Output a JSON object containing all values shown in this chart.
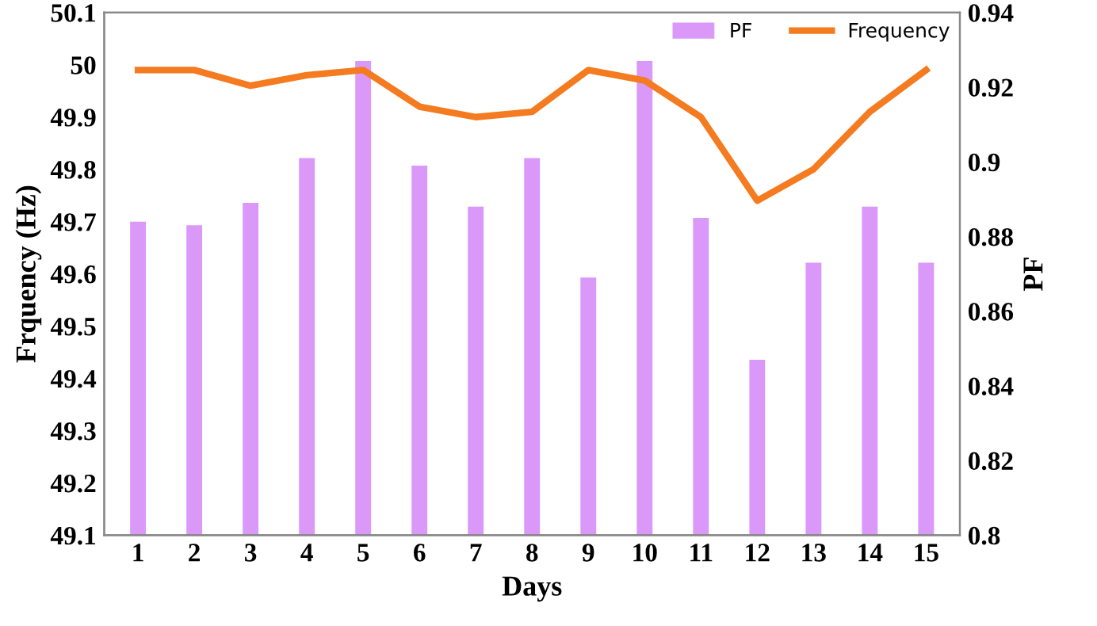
{
  "chart_data": {
    "type": "bar",
    "xlabel": "Days",
    "ylabel": "Frquency (Hz)",
    "y2label": "PF",
    "categories": [
      "1",
      "2",
      "3",
      "4",
      "5",
      "6",
      "7",
      "8",
      "9",
      "10",
      "11",
      "12",
      "13",
      "14",
      "15"
    ],
    "series": [
      {
        "name": "PF",
        "axis": "y2",
        "color": "#da98f8",
        "values": [
          0.884,
          0.883,
          0.889,
          0.901,
          0.927,
          0.899,
          0.888,
          0.901,
          0.869,
          0.927,
          0.885,
          0.847,
          0.873,
          0.888,
          0.873
        ]
      },
      {
        "name": "Frequency",
        "type": "line",
        "axis": "y",
        "color": "#f47b20",
        "values": [
          49.99,
          49.99,
          49.96,
          49.98,
          49.99,
          49.92,
          49.9,
          49.91,
          49.99,
          49.97,
          49.9,
          49.74,
          49.8,
          49.91,
          49.99
        ]
      }
    ],
    "ylim": [
      49.1,
      50.1
    ],
    "yticks": [
      49.1,
      49.2,
      49.3,
      49.4,
      49.5,
      49.6,
      49.7,
      49.8,
      49.9,
      50,
      50.1
    ],
    "y2lim": [
      0.8,
      0.94
    ],
    "y2ticks": [
      0.8,
      0.82,
      0.84,
      0.86,
      0.88,
      0.9,
      0.92,
      0.94
    ],
    "legend": "top right",
    "grid": false,
    "marker": "none",
    "line_style": "solid"
  }
}
